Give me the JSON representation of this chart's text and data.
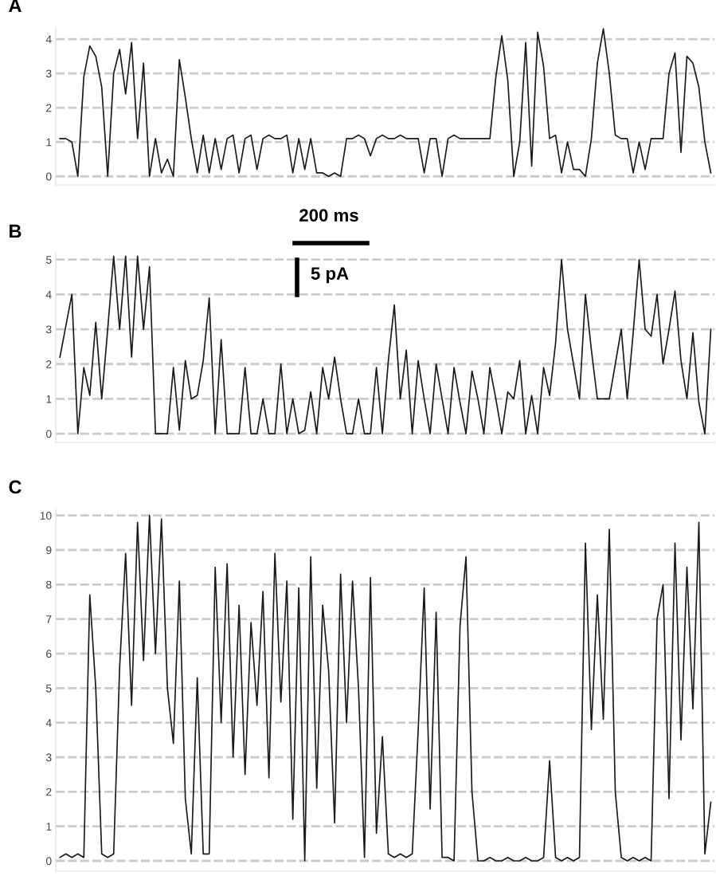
{
  "chart_data": [
    {
      "type": "line",
      "title": "A",
      "categories": [
        null,
        null,
        null,
        null,
        null,
        null,
        null,
        null,
        null,
        null,
        null,
        null,
        null,
        null,
        null,
        null,
        null,
        null,
        null,
        null,
        null,
        null,
        null,
        null,
        null,
        null,
        null,
        null,
        null,
        null,
        null,
        null,
        null,
        null,
        null,
        null,
        null,
        null,
        null,
        null,
        null,
        null,
        null,
        null,
        null,
        null,
        null,
        null,
        null,
        null,
        null,
        null,
        null,
        null,
        null,
        null,
        null,
        null,
        null,
        null,
        null,
        null,
        null,
        null,
        null,
        null,
        null,
        null,
        null,
        null,
        null,
        null,
        null,
        null,
        null,
        null,
        null,
        null,
        null,
        null,
        null,
        null,
        null,
        null,
        null,
        null,
        null,
        null,
        null,
        null,
        null,
        null,
        null,
        null,
        null,
        null,
        null,
        null,
        null,
        null,
        null,
        null,
        null,
        null,
        null,
        null,
        null,
        null,
        null,
        null
      ],
      "series": [
        {
          "color": "#1a1a1a",
          "values": [
            1.1,
            1.1,
            1.0,
            0,
            2.9,
            3.8,
            3.5,
            2.6,
            0.0,
            3.0,
            3.7,
            2.4,
            3.9,
            1.1,
            3.3,
            0.0,
            1.1,
            0.1,
            0.5,
            0.0,
            3.4,
            2.3,
            1.1,
            0.1,
            1.2,
            0.1,
            1.1,
            0.2,
            1.1,
            1.2,
            0.1,
            1.1,
            1.2,
            0.2,
            1.1,
            1.2,
            1.1,
            1.1,
            1.2,
            0.1,
            1.1,
            0.2,
            1.1,
            0.1,
            0.1,
            0.0,
            0.1,
            0.0,
            1.1,
            1.1,
            1.2,
            1.1,
            0.6,
            1.1,
            1.2,
            1.1,
            1.1,
            1.2,
            1.1,
            1.1,
            1.1,
            0.1,
            1.1,
            1.1,
            0.0,
            1.1,
            1.2,
            1.1,
            1.1,
            1.1,
            1.1,
            1.1,
            1.1,
            2.9,
            4.1,
            2.8,
            0.0,
            1.0,
            3.9,
            0.3,
            4.2,
            3.2,
            1.1,
            1.2,
            0.1,
            1.0,
            0.2,
            0.2,
            0.0,
            1.1,
            3.3,
            4.3,
            3.0,
            1.2,
            1.1,
            1.1,
            0.1,
            1.0,
            0.2,
            1.1,
            1.1,
            1.1,
            3.0,
            3.6,
            0.7,
            3.5,
            3.3,
            2.6,
            1.0,
            0.1
          ]
        }
      ],
      "ylim": [
        -0.25,
        4.35
      ],
      "yticks": [
        0,
        1,
        2,
        3,
        4
      ],
      "grid": "y",
      "line_style": "solid",
      "tick_labels": "y"
    },
    {
      "type": "line",
      "title": "B",
      "categories": [
        null,
        null,
        null,
        null,
        null,
        null,
        null,
        null,
        null,
        null,
        null,
        null,
        null,
        null,
        null,
        null,
        null,
        null,
        null,
        null,
        null,
        null,
        null,
        null,
        null,
        null,
        null,
        null,
        null,
        null,
        null,
        null,
        null,
        null,
        null,
        null,
        null,
        null,
        null,
        null,
        null,
        null,
        null,
        null,
        null,
        null,
        null,
        null,
        null,
        null,
        null,
        null,
        null,
        null,
        null,
        null,
        null,
        null,
        null,
        null,
        null,
        null,
        null,
        null,
        null,
        null,
        null,
        null,
        null,
        null,
        null,
        null,
        null,
        null,
        null,
        null,
        null,
        null,
        null,
        null,
        null,
        null,
        null,
        null,
        null,
        null,
        null,
        null,
        null,
        null,
        null,
        null,
        null,
        null,
        null,
        null,
        null,
        null,
        null,
        null,
        null,
        null,
        null,
        null,
        null,
        null,
        null,
        null,
        null,
        null
      ],
      "series": [
        {
          "color": "#1a1a1a",
          "values": [
            2.2,
            3.1,
            4.0,
            0.0,
            1.9,
            1.1,
            3.2,
            1.0,
            3.0,
            5.1,
            3.0,
            5.1,
            2.2,
            5.1,
            3.0,
            4.8,
            0.0,
            0.0,
            0.0,
            1.9,
            0.1,
            2.1,
            1.0,
            1.1,
            2.1,
            3.9,
            0.0,
            2.7,
            0.0,
            0.0,
            0.0,
            1.9,
            0.0,
            0.0,
            1.0,
            0.0,
            0.0,
            2.0,
            0.0,
            1.0,
            0.0,
            0.1,
            1.2,
            0.0,
            1.9,
            1.0,
            2.2,
            1.0,
            0.0,
            0.0,
            1.0,
            0.0,
            0.0,
            1.9,
            0.0,
            2.1,
            3.7,
            1.0,
            2.4,
            0.0,
            2.1,
            1.0,
            0.0,
            2.0,
            1.0,
            0.0,
            1.9,
            0.9,
            0.0,
            1.8,
            1.0,
            0.0,
            1.9,
            1.0,
            0.0,
            1.2,
            1.0,
            2.1,
            0.0,
            1.1,
            0.0,
            1.9,
            1.1,
            2.6,
            5.0,
            3.0,
            2.0,
            1.0,
            4.0,
            2.4,
            1.0,
            1.0,
            1.0,
            2.0,
            3.0,
            1.0,
            2.9,
            5.0,
            3.0,
            2.8,
            4.0,
            2.0,
            3.0,
            4.1,
            2.1,
            1.0,
            2.9,
            0.9,
            0.0,
            3.0
          ]
        }
      ],
      "ylim": [
        -0.25,
        5.2
      ],
      "yticks": [
        0,
        1,
        2,
        3,
        4,
        5
      ],
      "grid": "y",
      "line_style": "solid",
      "tick_labels": "y",
      "annotations": [
        "200 ms",
        "5 pA"
      ]
    },
    {
      "type": "line",
      "title": "C",
      "categories": [
        null,
        null,
        null,
        null,
        null,
        null,
        null,
        null,
        null,
        null,
        null,
        null,
        null,
        null,
        null,
        null,
        null,
        null,
        null,
        null,
        null,
        null,
        null,
        null,
        null,
        null,
        null,
        null,
        null,
        null,
        null,
        null,
        null,
        null,
        null,
        null,
        null,
        null,
        null,
        null,
        null,
        null,
        null,
        null,
        null,
        null,
        null,
        null,
        null,
        null,
        null,
        null,
        null,
        null,
        null,
        null,
        null,
        null,
        null,
        null,
        null,
        null,
        null,
        null,
        null,
        null,
        null,
        null,
        null,
        null,
        null,
        null,
        null,
        null,
        null,
        null,
        null,
        null,
        null,
        null,
        null,
        null,
        null,
        null,
        null,
        null,
        null,
        null,
        null,
        null,
        null,
        null,
        null,
        null,
        null,
        null,
        null,
        null,
        null,
        null,
        null,
        null,
        null,
        null,
        null,
        null,
        null,
        null,
        null,
        null
      ],
      "series": [
        {
          "color": "#1a1a1a",
          "values": [
            0.1,
            0.2,
            0.1,
            0.2,
            0.1,
            7.7,
            5.0,
            0.2,
            0.1,
            0.2,
            5.6,
            8.9,
            4.5,
            9.8,
            5.8,
            10.0,
            6.0,
            9.9,
            5.0,
            3.4,
            8.1,
            1.8,
            0.2,
            5.3,
            0.2,
            0.2,
            8.5,
            4.0,
            8.6,
            3.0,
            7.4,
            2.5,
            6.9,
            4.5,
            7.8,
            2.4,
            8.9,
            4.6,
            8.1,
            1.2,
            7.9,
            0.0,
            8.8,
            2.1,
            7.4,
            5.5,
            1.1,
            8.3,
            4.0,
            8.1,
            5.0,
            0.1,
            8.2,
            0.8,
            3.6,
            0.2,
            0.1,
            0.2,
            0.1,
            0.2,
            3.8,
            7.9,
            1.5,
            7.2,
            0.1,
            0.1,
            0.0,
            6.8,
            8.8,
            2.0,
            0.0,
            0.0,
            0.1,
            0.0,
            0.0,
            0.1,
            0.0,
            0.0,
            0.1,
            0.0,
            0.0,
            0.1,
            2.9,
            0.1,
            0.0,
            0.1,
            0.0,
            0.1,
            9.2,
            3.8,
            7.7,
            4.1,
            9.6,
            2.0,
            0.1,
            0.0,
            0.1,
            0.0,
            0.1,
            0.0,
            7.0,
            8.0,
            1.8,
            9.2,
            3.5,
            8.5,
            4.4,
            9.8,
            0.2,
            1.7
          ]
        }
      ],
      "ylim": [
        -0.3,
        10.2
      ],
      "yticks": [
        0,
        1,
        2,
        3,
        4,
        5,
        6,
        7,
        8,
        9,
        10
      ],
      "grid": "y",
      "line_style": "solid",
      "tick_labels": "y"
    }
  ]
}
